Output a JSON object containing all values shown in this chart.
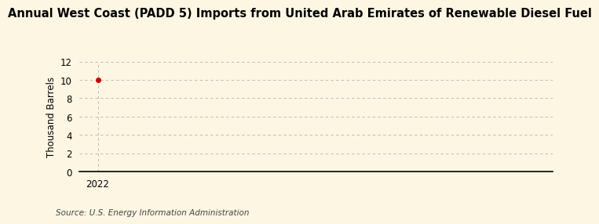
{
  "title": "Annual West Coast (PADD 5) Imports from United Arab Emirates of Renewable Diesel Fuel",
  "ylabel": "Thousand Barrels",
  "source_text": "Source: U.S. Energy Information Administration",
  "x_data": [
    2022
  ],
  "y_data": [
    10
  ],
  "xlim": [
    2021.7,
    2029.5
  ],
  "ylim": [
    0,
    12
  ],
  "yticks": [
    0,
    2,
    4,
    6,
    8,
    10,
    12
  ],
  "xticks": [
    2022
  ],
  "data_color": "#cc0000",
  "grid_color": "#b0b0b0",
  "background_color": "#fdf6e3",
  "title_fontsize": 10.5,
  "axis_label_fontsize": 8.5,
  "tick_fontsize": 8.5,
  "source_fontsize": 7.5,
  "marker": "o",
  "marker_size": 4
}
